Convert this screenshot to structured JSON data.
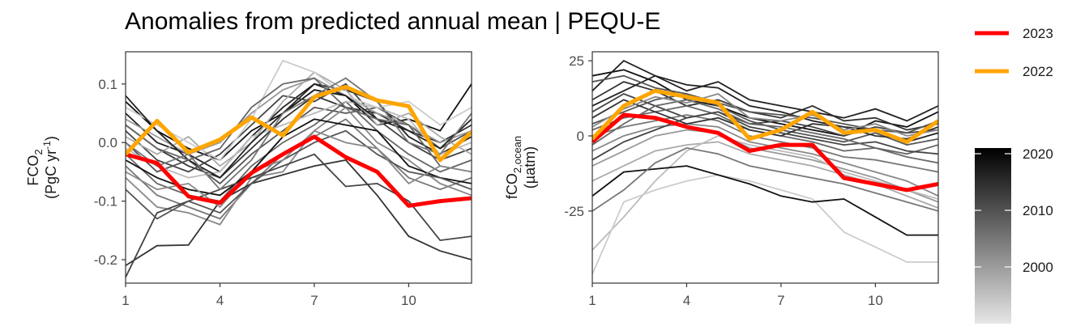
{
  "title": "Anomalies from predicted annual mean | PEQU-E",
  "legend": {
    "items": [
      {
        "label": "2023",
        "color": "#ff0000"
      },
      {
        "label": "2022",
        "color": "#ffa500"
      }
    ],
    "colorbar": {
      "min_year": 1990,
      "max_year": 2021,
      "ticks": [
        "2020",
        "2010",
        "2000"
      ],
      "low_color": "#e6e6e6",
      "high_color": "#000000"
    }
  },
  "chart_data": [
    {
      "type": "line",
      "ylabel_line1": "FCO",
      "ylabel_sub": "2",
      "ylabel_line2": "(PgC yr",
      "ylabel_sup": "-1",
      "ylabel_close": ")",
      "x_ticks": [
        "1",
        "4",
        "7",
        "10"
      ],
      "y_ticks": [
        "0.1",
        "0.0",
        "-0.1",
        "-0.2"
      ],
      "x_tick_values": [
        1,
        4,
        7,
        10
      ],
      "y_tick_values": [
        0.1,
        0.0,
        -0.1,
        -0.2
      ],
      "xlim": [
        1,
        12
      ],
      "ylim": [
        -0.24,
        0.155
      ],
      "grid": false,
      "highlight_series": [
        {
          "name": "2023",
          "color": "#ff0000",
          "values": [
            -0.02,
            -0.035,
            -0.092,
            -0.103,
            -0.052,
            -0.02,
            0.01,
            -0.025,
            -0.05,
            -0.108,
            -0.1,
            -0.095
          ]
        },
        {
          "name": "2022",
          "color": "#ffa500",
          "values": [
            -0.02,
            0.037,
            -0.017,
            0.005,
            0.043,
            0.012,
            0.078,
            0.095,
            0.072,
            0.062,
            -0.03,
            0.018
          ]
        }
      ],
      "background_series": [
        [
          0.07,
          0.02,
          -0.01,
          -0.03,
          0.02,
          0.05,
          0.09,
          0.08,
          0.03,
          0.04,
          0.02,
          0.1
        ],
        [
          0.05,
          0.0,
          -0.02,
          -0.05,
          0.01,
          0.06,
          0.1,
          0.09,
          0.07,
          0.01,
          -0.02,
          0.01
        ],
        [
          0.03,
          -0.01,
          -0.04,
          -0.06,
          -0.01,
          0.04,
          0.08,
          0.06,
          0.05,
          0.02,
          0.0,
          0.03
        ],
        [
          0.02,
          -0.03,
          -0.05,
          -0.02,
          0.03,
          0.08,
          0.07,
          0.1,
          0.04,
          0.0,
          -0.03,
          -0.01
        ],
        [
          0.0,
          -0.05,
          -0.03,
          -0.07,
          -0.02,
          0.02,
          0.06,
          0.05,
          0.06,
          0.03,
          -0.01,
          0.02
        ],
        [
          -0.02,
          -0.07,
          -0.09,
          -0.1,
          -0.04,
          0.0,
          0.03,
          0.07,
          0.02,
          -0.02,
          -0.05,
          -0.03
        ],
        [
          -0.04,
          -0.09,
          -0.11,
          -0.13,
          -0.07,
          -0.02,
          0.01,
          0.04,
          -0.01,
          -0.06,
          -0.08,
          -0.06
        ],
        [
          -0.06,
          -0.11,
          -0.12,
          -0.14,
          -0.06,
          -0.05,
          0.02,
          0.06,
          0.0,
          -0.03,
          -0.07,
          -0.09
        ],
        [
          0.04,
          0.01,
          -0.02,
          0.0,
          0.05,
          0.09,
          0.11,
          0.08,
          0.05,
          0.03,
          0.0,
          0.02
        ],
        [
          0.01,
          -0.02,
          0.01,
          -0.04,
          0.0,
          0.07,
          0.12,
          0.09,
          0.03,
          0.05,
          0.01,
          -0.02
        ],
        [
          -0.01,
          -0.04,
          -0.06,
          -0.05,
          0.01,
          0.03,
          0.05,
          0.07,
          0.06,
          0.04,
          -0.02,
          0.0
        ],
        [
          0.06,
          0.03,
          0.0,
          -0.03,
          0.04,
          0.14,
          0.12,
          0.08,
          0.06,
          0.07,
          0.03,
          0.06
        ],
        [
          -0.03,
          -0.06,
          -0.08,
          -0.09,
          -0.05,
          0.01,
          0.04,
          0.03,
          0.02,
          -0.04,
          -0.06,
          -0.07
        ],
        [
          0.08,
          0.02,
          -0.03,
          -0.06,
          0.0,
          0.05,
          0.1,
          0.08,
          0.04,
          0.02,
          -0.01,
          0.04
        ],
        [
          -0.21,
          -0.176,
          -0.175,
          -0.1,
          -0.07,
          -0.055,
          -0.04,
          -0.03,
          -0.09,
          -0.16,
          -0.185,
          -0.2
        ],
        [
          -0.23,
          -0.12,
          -0.1,
          -0.08,
          -0.06,
          -0.04,
          -0.02,
          -0.075,
          -0.07,
          -0.1,
          -0.167,
          -0.16
        ],
        [
          -0.08,
          -0.13,
          -0.1,
          -0.12,
          -0.07,
          -0.03,
          0.0,
          0.02,
          -0.02,
          -0.05,
          -0.06,
          -0.08
        ],
        [
          0.03,
          -0.01,
          -0.03,
          -0.01,
          0.06,
          0.1,
          0.11,
          0.06,
          0.04,
          0.03,
          -0.04,
          -0.05
        ],
        [
          0.0,
          -0.04,
          -0.02,
          -0.08,
          -0.03,
          0.05,
          0.08,
          0.11,
          0.07,
          0.0,
          -0.02,
          0.05
        ],
        [
          -0.05,
          -0.08,
          -0.07,
          -0.11,
          -0.05,
          -0.03,
          0.02,
          0.0,
          -0.01,
          -0.07,
          -0.04,
          -0.05
        ]
      ]
    },
    {
      "type": "line",
      "ylabel_line1": "fCO",
      "ylabel_sub": "2,ocean",
      "ylabel_line2": "(µatm)",
      "x_ticks": [
        "1",
        "4",
        "7",
        "10"
      ],
      "y_ticks": [
        "25",
        "0",
        "-25"
      ],
      "x_tick_values": [
        1,
        4,
        7,
        10
      ],
      "y_tick_values": [
        25,
        0,
        -25
      ],
      "xlim": [
        1,
        12
      ],
      "ylim": [
        -49,
        28
      ],
      "grid": false,
      "highlight_series": [
        {
          "name": "2023",
          "color": "#ff0000",
          "values": [
            -2,
            7,
            6,
            3,
            1,
            -5,
            -3,
            -3,
            -14,
            -16,
            -18,
            -16
          ]
        },
        {
          "name": "2022",
          "color": "#ffa500",
          "values": [
            -1,
            10,
            15,
            13,
            11,
            -1,
            2,
            8,
            1,
            2,
            -2,
            5
          ]
        }
      ],
      "background_series": [
        [
          20,
          22,
          18,
          12,
          10,
          6,
          4,
          2,
          0,
          5,
          3,
          8
        ],
        [
          15,
          25,
          20,
          17,
          16,
          10,
          8,
          5,
          3,
          2,
          -2,
          1
        ],
        [
          12,
          18,
          15,
          10,
          12,
          8,
          6,
          10,
          5,
          6,
          2,
          4
        ],
        [
          8,
          14,
          10,
          6,
          8,
          4,
          5,
          3,
          0,
          3,
          1,
          2
        ],
        [
          4,
          8,
          12,
          14,
          10,
          5,
          2,
          0,
          -2,
          1,
          -3,
          -1
        ],
        [
          2,
          6,
          8,
          10,
          7,
          2,
          0,
          -2,
          -5,
          -4,
          -6,
          -3
        ],
        [
          0,
          3,
          5,
          7,
          5,
          0,
          -2,
          -4,
          -7,
          -8,
          -10,
          -12
        ],
        [
          -5,
          0,
          3,
          4,
          3,
          -2,
          -4,
          -6,
          -9,
          -12,
          -15,
          -20
        ],
        [
          -10,
          -5,
          0,
          2,
          1,
          -4,
          -6,
          -8,
          -11,
          -14,
          -18,
          -22
        ],
        [
          -15,
          -10,
          -5,
          -3,
          -2,
          -6,
          -8,
          -10,
          -13,
          -16,
          -20,
          -24
        ],
        [
          -38,
          -27,
          -15,
          -5,
          0,
          -3,
          -5,
          -7,
          -12,
          -15,
          -18,
          -21
        ],
        [
          -46,
          -22,
          -18,
          -15,
          -13,
          -15,
          -18,
          -21,
          -32,
          -37,
          -42,
          -42
        ],
        [
          -20,
          -12,
          -11,
          -10,
          -13,
          -16,
          -20,
          -22,
          -21,
          -27,
          -33,
          -33
        ],
        [
          10,
          15,
          20,
          15,
          18,
          12,
          10,
          8,
          6,
          9,
          5,
          10
        ],
        [
          6,
          12,
          8,
          4,
          6,
          2,
          0,
          4,
          3,
          0,
          -1,
          3
        ],
        [
          -8,
          -2,
          2,
          6,
          8,
          3,
          1,
          -1,
          -3,
          -2,
          -5,
          -6
        ],
        [
          18,
          20,
          16,
          14,
          11,
          8,
          7,
          6,
          4,
          2,
          1,
          5
        ],
        [
          -3,
          4,
          10,
          12,
          9,
          4,
          3,
          1,
          -1,
          -4,
          -7,
          -9
        ],
        [
          -25,
          -18,
          -9,
          -4,
          -6,
          -10,
          -12,
          -14,
          -16,
          -19,
          -22,
          -25
        ],
        [
          3,
          9,
          13,
          11,
          14,
          6,
          5,
          7,
          2,
          4,
          0,
          2
        ]
      ]
    }
  ]
}
